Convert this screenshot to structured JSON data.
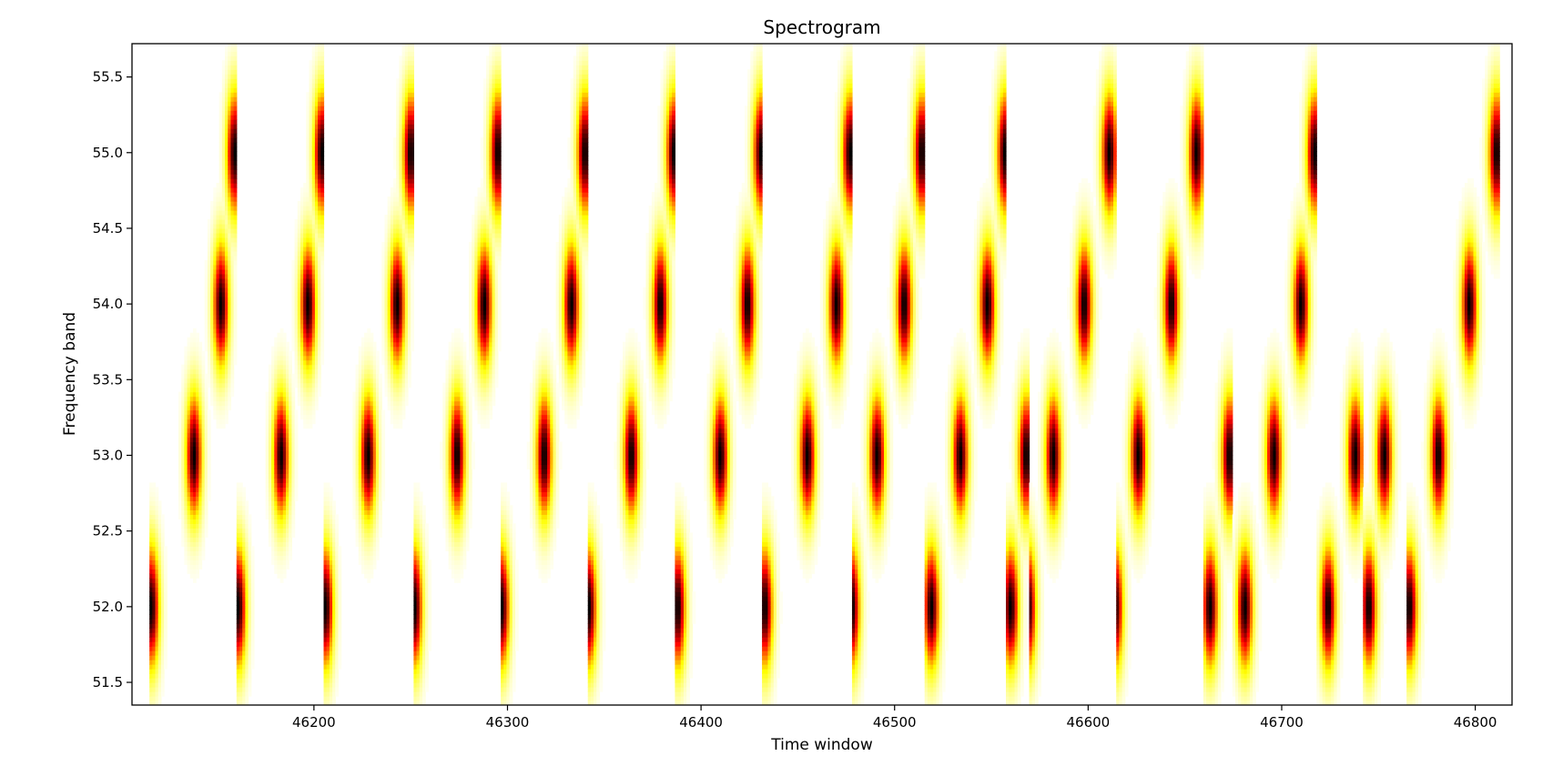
{
  "chart_data": {
    "type": "heatmap",
    "title": "Spectrogram",
    "xlabel": "Time window",
    "ylabel": "Frequency band",
    "xlim": [
      46106,
      46819
    ],
    "ylim": [
      51.35,
      55.72
    ],
    "x_ticks": [
      46200,
      46300,
      46400,
      46500,
      46600,
      46700,
      46800
    ],
    "x_tick_labels": [
      "46200",
      "46300",
      "46400",
      "46500",
      "46600",
      "46700",
      "46800"
    ],
    "y_ticks": [
      51.5,
      52.0,
      52.5,
      53.0,
      53.5,
      54.0,
      54.5,
      55.0,
      55.5
    ],
    "y_tick_labels": [
      "51.5",
      "52.0",
      "52.5",
      "53.0",
      "53.5",
      "54.0",
      "54.5",
      "55.0",
      "55.5"
    ],
    "colormap": "hot_r",
    "colors": {
      "low": "#ffffff",
      "mid_low": "#ffff00",
      "mid": "#ff0000",
      "high": "#000000"
    },
    "grid": false,
    "sweeps": [
      {
        "start": 46115,
        "end": 46160,
        "peak_times": [
          46116,
          46138,
          46152,
          46159
        ]
      },
      {
        "start": 46160,
        "end": 46205,
        "peak_times": [
          46161,
          46183,
          46197,
          46204
        ]
      },
      {
        "start": 46205,
        "end": 46251,
        "peak_times": [
          46206,
          46228,
          46243,
          46250
        ]
      },
      {
        "start": 46251,
        "end": 46296,
        "peak_times": [
          46252,
          46274,
          46288,
          46295
        ]
      },
      {
        "start": 46296,
        "end": 46341,
        "peak_times": [
          46297,
          46319,
          46333,
          46340
        ]
      },
      {
        "start": 46341,
        "end": 46387,
        "peak_times": [
          46342,
          46364,
          46379,
          46386
        ]
      },
      {
        "start": 46387,
        "end": 46432,
        "peak_times": [
          46388,
          46410,
          46424,
          46431
        ]
      },
      {
        "start": 46432,
        "end": 46478,
        "peak_times": [
          46433,
          46455,
          46470,
          46477
        ]
      },
      {
        "start": 46478,
        "end": 46515,
        "peak_times": [
          46478,
          46491,
          46505,
          46514
        ]
      },
      {
        "start": 46515,
        "end": 46558,
        "peak_times": [
          46519,
          46534,
          46548,
          46557
        ]
      },
      {
        "start": 46558,
        "end": 46570,
        "peak_times": [
          46560,
          46568
        ]
      },
      {
        "start": 46570,
        "end": 46615,
        "peak_times": [
          46569,
          46582,
          46598,
          46611
        ]
      },
      {
        "start": 46615,
        "end": 46660,
        "peak_times": [
          46614,
          46626,
          46643,
          46656
        ]
      },
      {
        "start": 46660,
        "end": 46675,
        "peak_times": [
          46663,
          46673
        ]
      },
      {
        "start": 46675,
        "end": 46718,
        "peak_times": [
          46681,
          46696,
          46710,
          46717
        ]
      },
      {
        "start": 46718,
        "end": 46742,
        "peak_times": [
          46724,
          46738
        ]
      },
      {
        "start": 46742,
        "end": 46765,
        "peak_times": [
          46745,
          46753
        ]
      },
      {
        "start": 46765,
        "end": 46812,
        "peak_times": [
          46766,
          46781,
          46797,
          46811
        ]
      }
    ],
    "peak_frequencies": [
      52.0,
      53.0,
      54.0,
      55.0
    ]
  }
}
